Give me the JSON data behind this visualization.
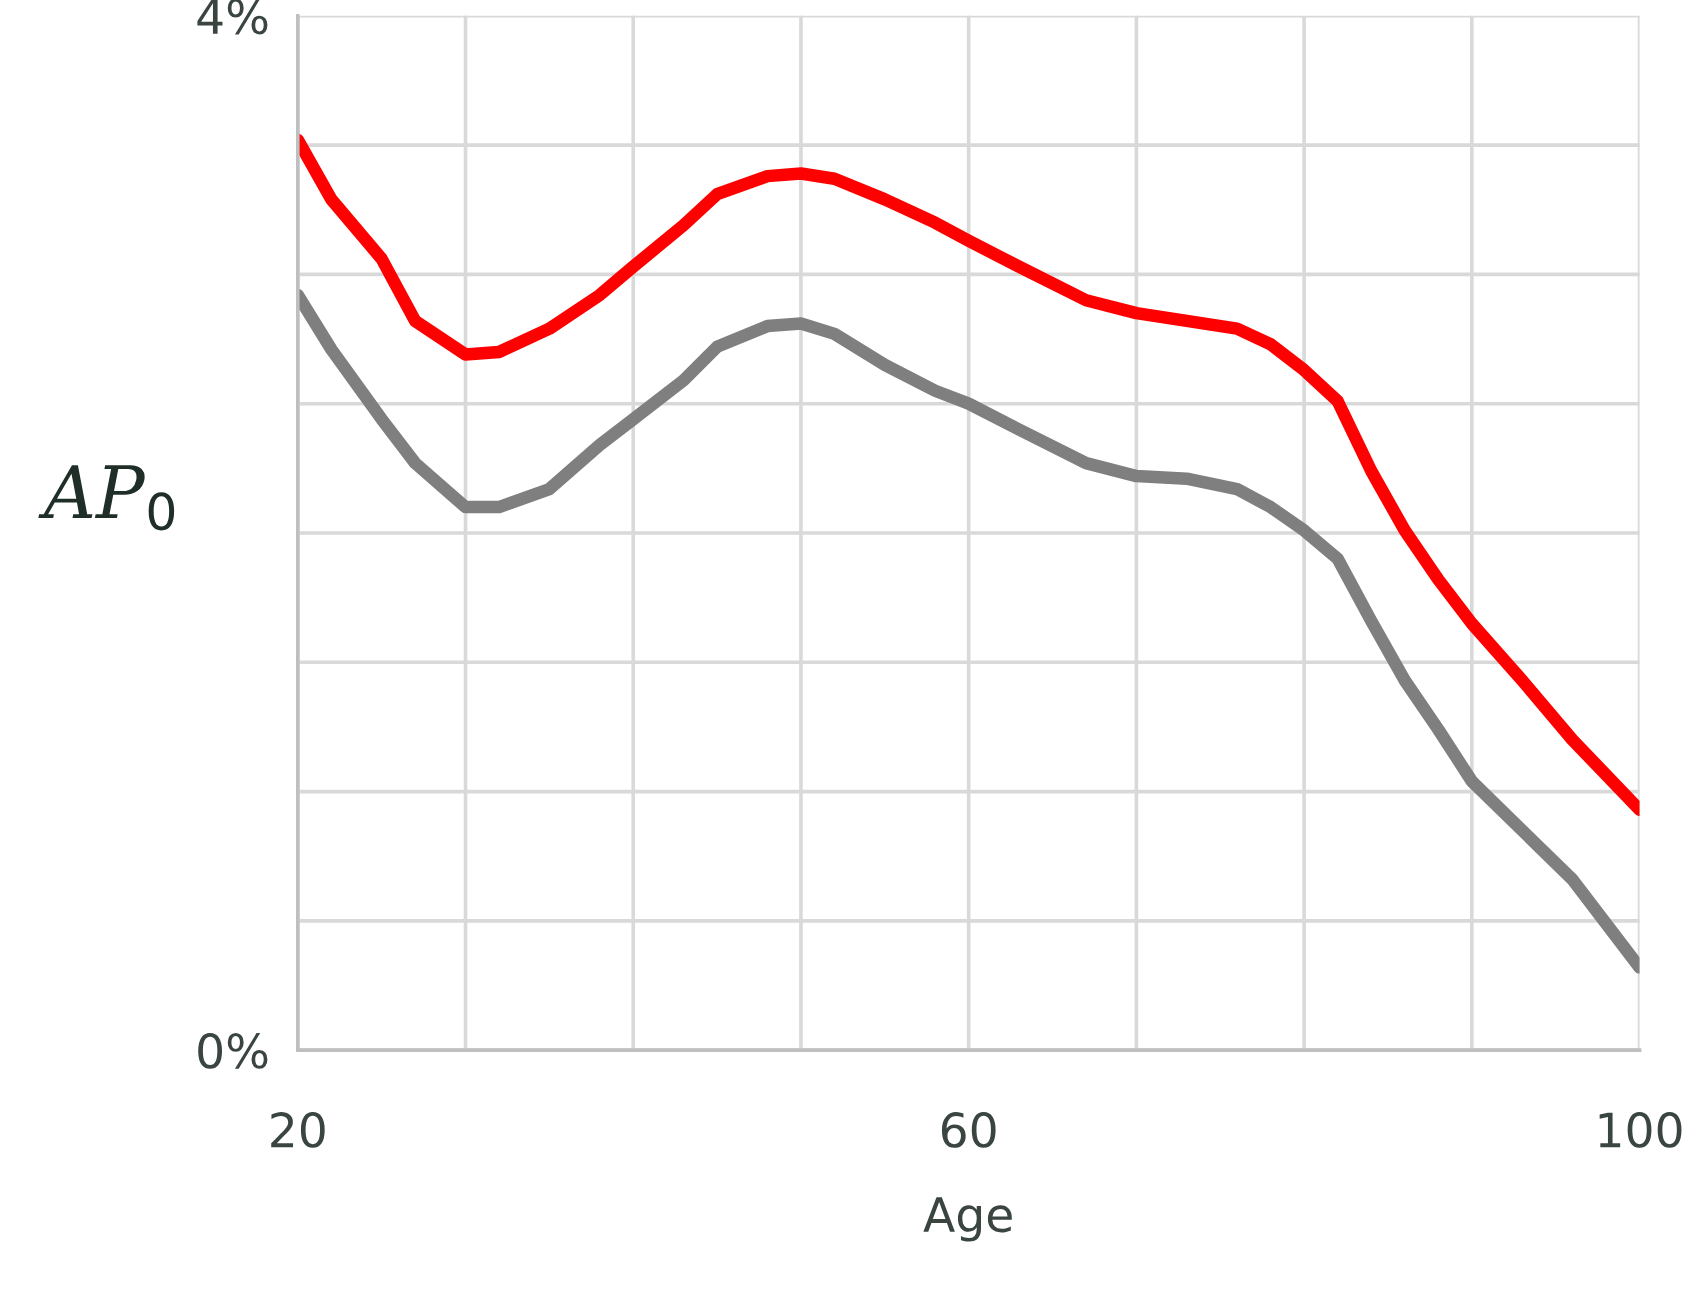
{
  "chart_data": {
    "type": "line",
    "xlabel": "Age",
    "ylabel": "AP$_{0}$",
    "x": [
      20,
      22,
      25,
      27,
      30,
      32,
      35,
      38,
      40,
      43,
      45,
      48,
      50,
      52,
      55,
      58,
      60,
      63,
      67,
      70,
      73,
      76,
      78,
      80,
      82,
      84,
      86,
      88,
      90,
      93,
      96,
      100
    ],
    "series": [
      {
        "color": "#ff0000",
        "values": [
          3.52,
          3.29,
          3.06,
          2.82,
          2.69,
          2.7,
          2.79,
          2.92,
          3.03,
          3.19,
          3.31,
          3.38,
          3.39,
          3.37,
          3.29,
          3.2,
          3.13,
          3.03,
          2.9,
          2.85,
          2.82,
          2.79,
          2.73,
          2.63,
          2.51,
          2.24,
          2.01,
          1.82,
          1.65,
          1.43,
          1.2,
          0.93
        ]
      },
      {
        "color": "#7f7f7f",
        "values": [
          2.92,
          2.71,
          2.44,
          2.27,
          2.1,
          2.1,
          2.17,
          2.34,
          2.44,
          2.59,
          2.72,
          2.8,
          2.81,
          2.77,
          2.65,
          2.55,
          2.5,
          2.4,
          2.27,
          2.22,
          2.21,
          2.17,
          2.1,
          2.01,
          1.9,
          1.66,
          1.43,
          1.24,
          1.04,
          0.85,
          0.66,
          0.32
        ]
      }
    ],
    "xlim": [
      20,
      100
    ],
    "ylim": [
      0,
      4
    ],
    "xticks": [
      20,
      {
        "value": 30,
        "label": null
      },
      {
        "value": 40,
        "label": null
      },
      {
        "value": 50,
        "label": null
      },
      60,
      {
        "value": 70,
        "label": null
      },
      {
        "value": 80,
        "label": null
      },
      {
        "value": 90,
        "label": null
      },
      100
    ],
    "yticks": [
      {
        "value": 0,
        "label": "0%"
      },
      {
        "value": 0.5,
        "label": null
      },
      {
        "value": 1,
        "label": null
      },
      {
        "value": 1.5,
        "label": null
      },
      {
        "value": 2,
        "label": null
      },
      {
        "value": 2.5,
        "label": null
      },
      {
        "value": 3,
        "label": null
      },
      {
        "value": 3.5,
        "label": null
      },
      {
        "value": 4,
        "label": "4%"
      }
    ],
    "grid": true,
    "marker": "none",
    "line_style": "solid",
    "legend": false
  }
}
